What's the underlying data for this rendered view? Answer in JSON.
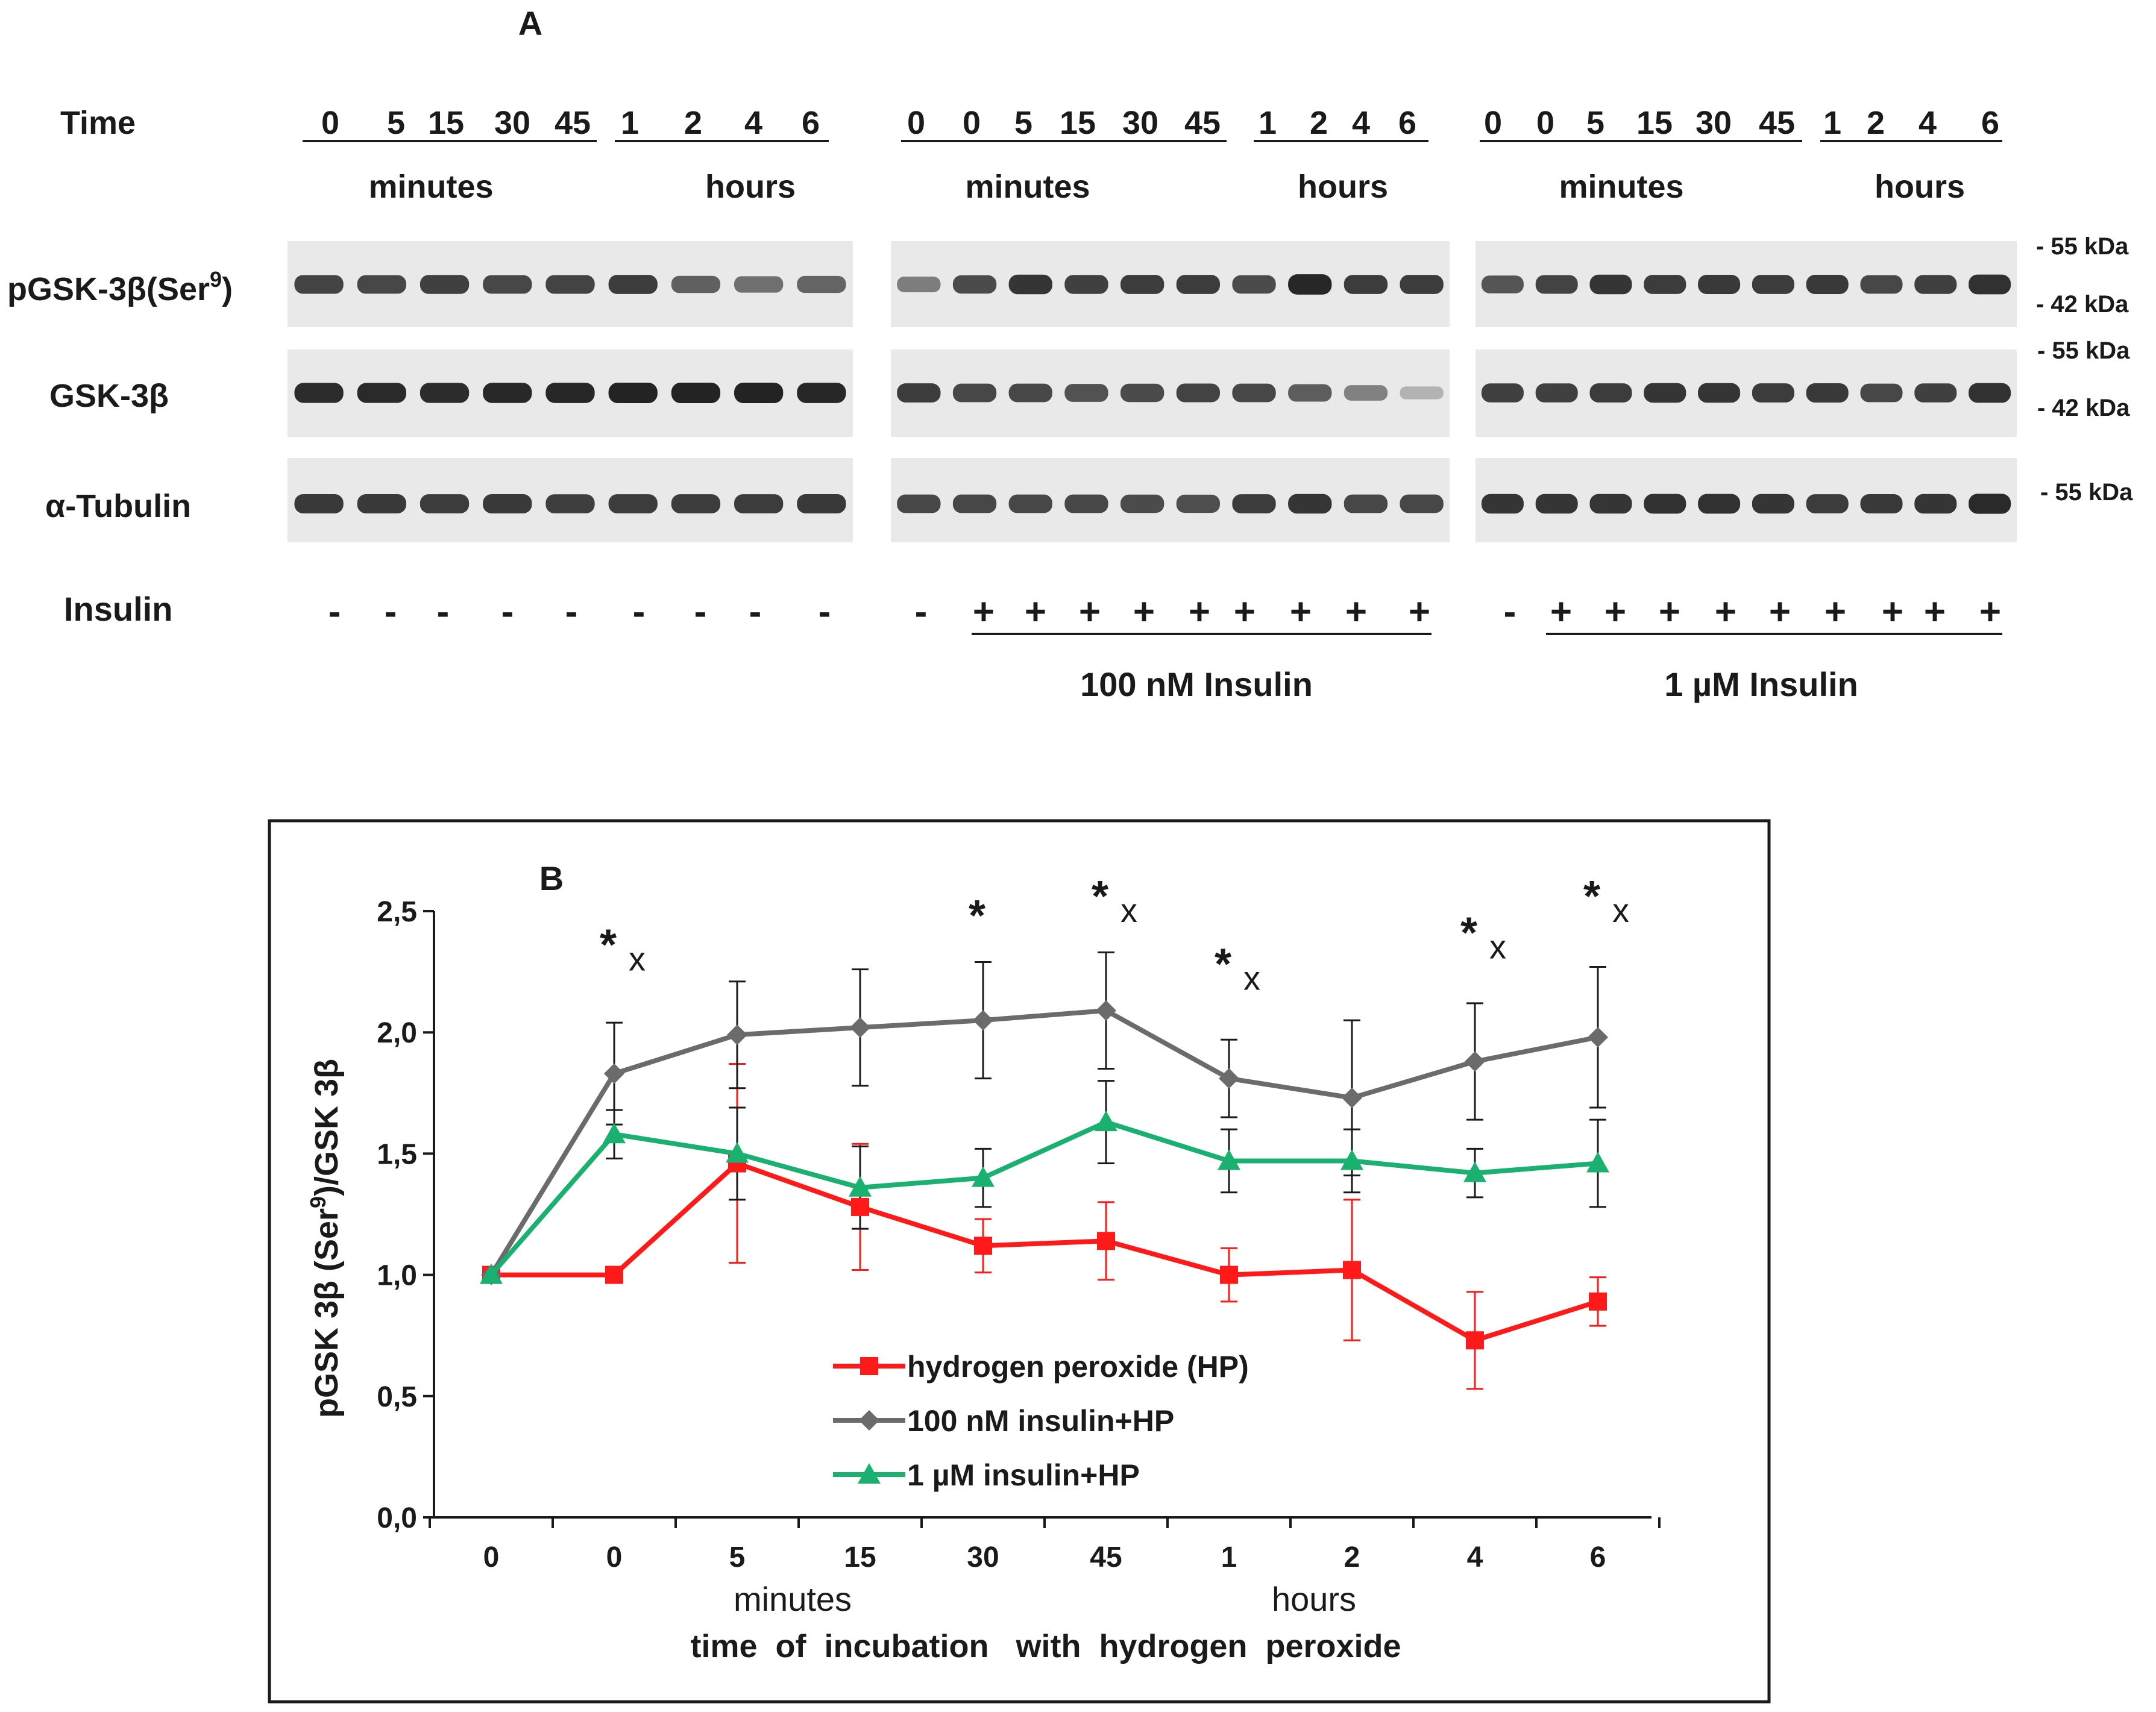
{
  "panel_a": {
    "title": "A",
    "time_label": "Time",
    "groups": [
      {
        "id": "control",
        "min_times": [
          "0",
          "5",
          "15",
          "30",
          "45"
        ],
        "hour_times": [
          "1",
          "2",
          "4",
          "6"
        ],
        "minutes_label": "minutes",
        "hours_label": "hours",
        "insulin": [
          "-",
          "-",
          "-",
          "-",
          "-",
          "-",
          "-",
          "-",
          "-"
        ],
        "treatment_label": ""
      },
      {
        "id": "insulin-100nm",
        "min_times": [
          "0",
          "0",
          "5",
          "15",
          "30",
          "45"
        ],
        "hour_times": [
          "1",
          "2",
          "4",
          "6"
        ],
        "minutes_label": "minutes",
        "hours_label": "hours",
        "insulin": [
          "-",
          "+",
          "+",
          "+",
          "+",
          "+",
          "+",
          "+",
          "+",
          "+"
        ],
        "treatment_label": "100 nM Insulin"
      },
      {
        "id": "insulin-1um",
        "min_times": [
          "0",
          "0",
          "5",
          "15",
          "30",
          "45"
        ],
        "hour_times": [
          "1",
          "2",
          "4",
          "6"
        ],
        "minutes_label": "minutes",
        "hours_label": "hours",
        "insulin": [
          "-",
          "+",
          "+",
          "+",
          "+",
          "+",
          "+",
          "+",
          "+",
          "+"
        ],
        "treatment_label": "1 µM Insulin"
      }
    ],
    "blot_rows": [
      {
        "label": "pGSK-3β(Ser",
        "label_sup": "9",
        "label_end": ")",
        "markers": [
          "- 55 kDa",
          "- 42 kDa"
        ]
      },
      {
        "label": "GSK-3β",
        "label_sup": "",
        "label_end": "",
        "markers": [
          "- 55 kDa",
          "- 42 kDa"
        ]
      },
      {
        "label": "α-Tubulin",
        "label_sup": "",
        "label_end": "",
        "markers": [
          "- 55 kDa"
        ]
      }
    ],
    "insulin_label": "Insulin",
    "band_intensity": [
      [
        [
          0.82,
          0.8,
          0.84,
          0.8,
          0.82,
          0.86,
          0.66,
          0.58,
          0.64
        ],
        [
          0.95,
          0.96,
          0.95,
          0.97,
          0.98,
          1.0,
          1.0,
          1.0,
          0.98
        ],
        [
          0.88,
          0.88,
          0.86,
          0.88,
          0.85,
          0.86,
          0.86,
          0.86,
          0.88
        ]
      ],
      [
        [
          0.5,
          0.78,
          0.9,
          0.84,
          0.86,
          0.86,
          0.78,
          0.98,
          0.86,
          0.86
        ],
        [
          0.86,
          0.8,
          0.8,
          0.74,
          0.78,
          0.82,
          0.8,
          0.68,
          0.48,
          0.2
        ],
        [
          0.8,
          0.8,
          0.8,
          0.8,
          0.78,
          0.76,
          0.86,
          0.9,
          0.8,
          0.8
        ]
      ],
      [
        [
          0.72,
          0.82,
          0.9,
          0.86,
          0.88,
          0.86,
          0.88,
          0.8,
          0.84,
          0.92
        ],
        [
          0.84,
          0.84,
          0.86,
          0.9,
          0.9,
          0.86,
          0.88,
          0.8,
          0.84,
          0.92
        ],
        [
          0.9,
          0.9,
          0.9,
          0.92,
          0.92,
          0.9,
          0.86,
          0.88,
          0.9,
          0.96
        ]
      ]
    ]
  },
  "chart_data": {
    "type": "line",
    "panel_label": "B",
    "categories": [
      "0",
      "0",
      "5",
      "15",
      "30",
      "45",
      "1",
      "2",
      "4",
      "6"
    ],
    "category_groups": [
      {
        "label": "minutes",
        "span": [
          1,
          5
        ]
      },
      {
        "label": "hours",
        "span": [
          6,
          9
        ]
      }
    ],
    "xlabel": "time  of  incubation   with  hydrogen  peroxide",
    "ylabel": "pGSK 3β (Ser",
    "ylabel_sup": "9",
    "ylabel_end": ")/GSK 3β",
    "ylim": [
      0,
      2.5
    ],
    "yticks": [
      0,
      0.5,
      1,
      1.5,
      2,
      2.5
    ],
    "ytick_labels": [
      "0,0",
      "0,5",
      "1,0",
      "1,5",
      "2,0",
      "2,5"
    ],
    "series": [
      {
        "name": "hydrogen peroxide (HP)",
        "color": "#ff1a1a",
        "marker": "square",
        "values": [
          1.0,
          1.0,
          1.46,
          1.28,
          1.12,
          1.14,
          1.0,
          1.02,
          0.73,
          0.89
        ],
        "errors": [
          0,
          0,
          0.41,
          0.26,
          0.11,
          0.16,
          0.11,
          0.29,
          0.2,
          0.1
        ]
      },
      {
        "name": "100 nM insulin+HP",
        "color": "#6b6b6b",
        "marker": "diamond",
        "values": [
          1.0,
          1.83,
          1.99,
          2.02,
          2.05,
          2.09,
          1.81,
          1.73,
          1.88,
          1.98
        ],
        "errors": [
          0,
          0.21,
          0.22,
          0.24,
          0.24,
          0.24,
          0.16,
          0.32,
          0.24,
          0.29
        ]
      },
      {
        "name": "1 µM insulin+HP",
        "color": "#1ab070",
        "marker": "triangle",
        "values": [
          1.0,
          1.58,
          1.5,
          1.36,
          1.4,
          1.63,
          1.47,
          1.47,
          1.42,
          1.46
        ],
        "errors": [
          0,
          0.1,
          0.19,
          0.17,
          0.12,
          0.17,
          0.13,
          0.13,
          0.1,
          0.18
        ]
      }
    ],
    "annotations": [
      {
        "index": 1,
        "y": 2.3,
        "stars": "*",
        "sub": "x"
      },
      {
        "index": 4,
        "y": 2.42,
        "stars": "*",
        "sub": ""
      },
      {
        "index": 5,
        "y": 2.5,
        "stars": "*",
        "sub": "x"
      },
      {
        "index": 6,
        "y": 2.22,
        "stars": "*",
        "sub": "x"
      },
      {
        "index": 8,
        "y": 2.35,
        "stars": "*",
        "sub": "x"
      },
      {
        "index": 9,
        "y": 2.5,
        "stars": "*",
        "sub": "x"
      }
    ],
    "legend_position": "lower-center"
  }
}
